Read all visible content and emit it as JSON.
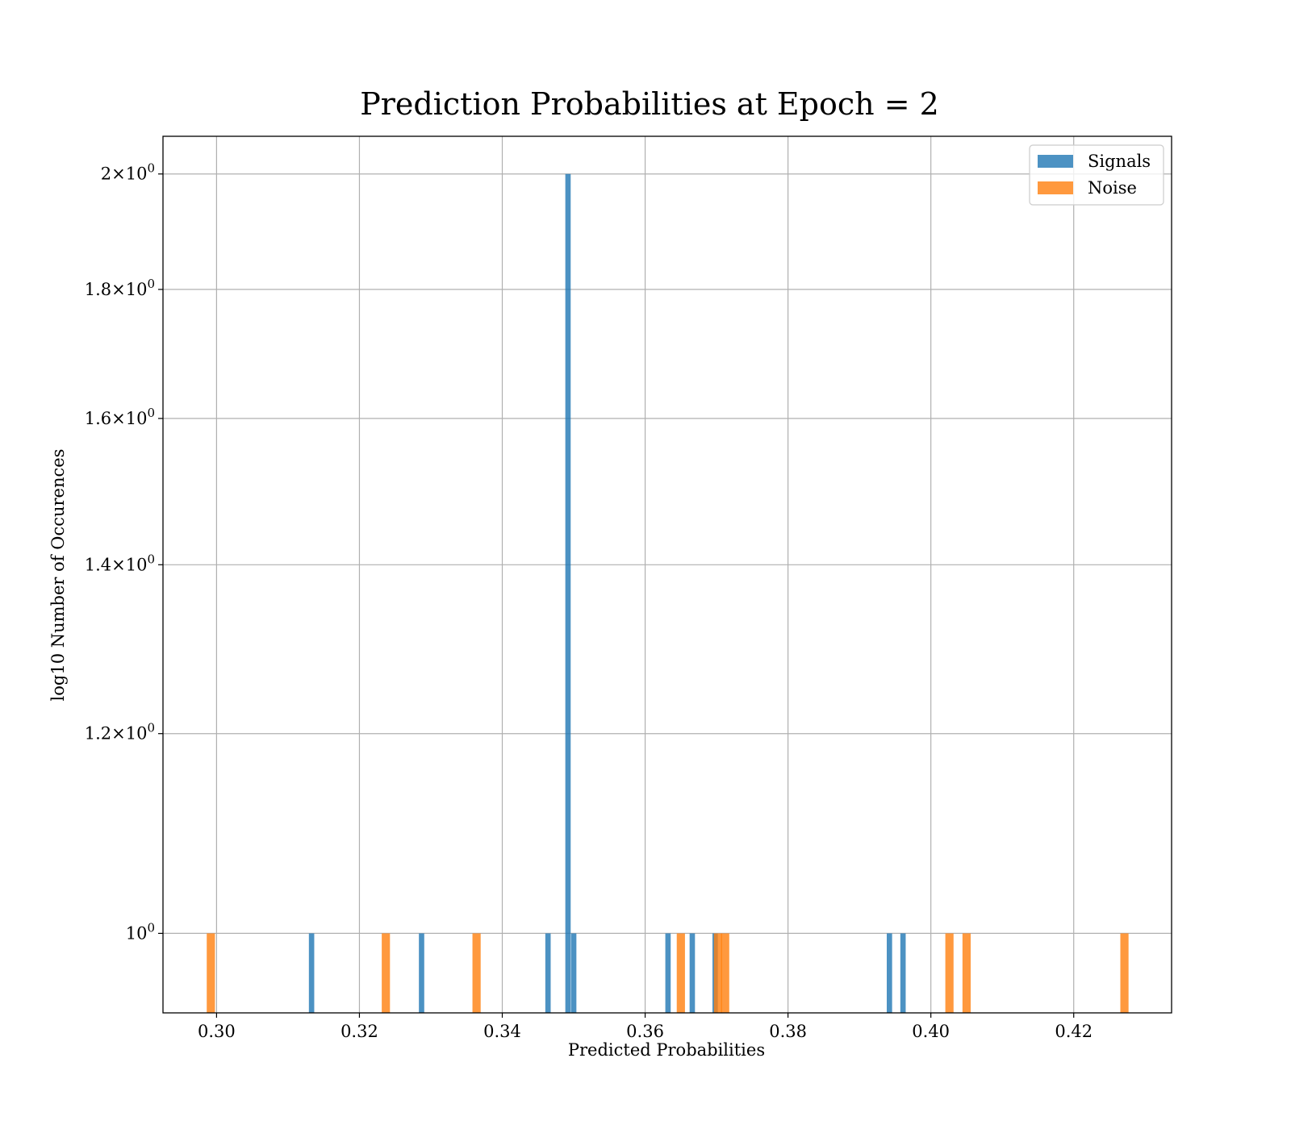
{
  "chart_data": {
    "type": "bar",
    "title": "Prediction Probabilities at Epoch = 2",
    "xlabel": "Predicted Probabilities",
    "ylabel": "log10 Number of Occurences",
    "xscale": "linear",
    "yscale": "log",
    "xlim": [
      0.2925,
      0.4337
    ],
    "ylim": [
      0.93,
      2.07
    ],
    "grid": true,
    "legend_position": "top-right",
    "x_ticks": [
      "0.30",
      "0.32",
      "0.34",
      "0.36",
      "0.38",
      "0.40",
      "0.42"
    ],
    "y_ticks": [
      {
        "value": 1.0,
        "mantissa": "",
        "exponent": "0"
      },
      {
        "value": 1.2,
        "mantissa": "1.2",
        "exponent": "0"
      },
      {
        "value": 1.4,
        "mantissa": "1.4",
        "exponent": "0"
      },
      {
        "value": 1.6,
        "mantissa": "1.6",
        "exponent": "0"
      },
      {
        "value": 1.8,
        "mantissa": "1.8",
        "exponent": "0"
      },
      {
        "value": 2.0,
        "mantissa": "2",
        "exponent": "0"
      }
    ],
    "series": [
      {
        "name": "Signals",
        "color": "#1f77b4",
        "bin_width": 0.00075,
        "bars": [
          {
            "x": 0.3133,
            "count": 1
          },
          {
            "x": 0.3287,
            "count": 1
          },
          {
            "x": 0.3464,
            "count": 1
          },
          {
            "x": 0.3492,
            "count": 2
          },
          {
            "x": 0.35,
            "count": 1
          },
          {
            "x": 0.3632,
            "count": 1
          },
          {
            "x": 0.3666,
            "count": 1
          },
          {
            "x": 0.3698,
            "count": 1
          },
          {
            "x": 0.3942,
            "count": 1
          },
          {
            "x": 0.3961,
            "count": 1
          }
        ]
      },
      {
        "name": "Noise",
        "color": "#ff7f0e",
        "bin_width": 0.00115,
        "bars": [
          {
            "x": 0.2992,
            "count": 1
          },
          {
            "x": 0.3237,
            "count": 1
          },
          {
            "x": 0.3364,
            "count": 1
          },
          {
            "x": 0.365,
            "count": 1
          },
          {
            "x": 0.3702,
            "count": 1
          },
          {
            "x": 0.3712,
            "count": 1
          },
          {
            "x": 0.4026,
            "count": 1
          },
          {
            "x": 0.405,
            "count": 1
          },
          {
            "x": 0.4271,
            "count": 1
          }
        ]
      }
    ]
  }
}
